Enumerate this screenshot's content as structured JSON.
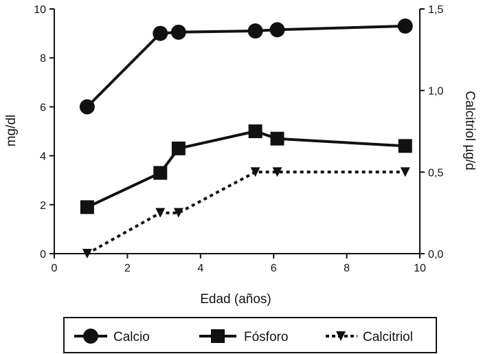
{
  "chart_data": {
    "type": "line",
    "x": [
      0.9,
      2.9,
      3.4,
      5.5,
      6.1,
      9.6
    ],
    "xlabel": "Edad (años)",
    "ylabel": "mg/dl",
    "y2label": "Calcitriol µg/d",
    "xlim": [
      0,
      10
    ],
    "ylim": [
      0,
      10
    ],
    "y2lim": [
      0,
      1.5
    ],
    "xticks": [
      "0",
      "2",
      "4",
      "6",
      "8",
      "10"
    ],
    "yticks": [
      "0",
      "2",
      "4",
      "6",
      "8",
      "10"
    ],
    "y2ticks": [
      "0,0",
      "0,5",
      "1,0",
      "1,5"
    ],
    "grid": false,
    "legend_position": "bottom",
    "series": [
      {
        "name": "Calcio",
        "axis": "left",
        "marker": "circle",
        "line": "solid",
        "x": [
          0.9,
          2.9,
          3.4,
          5.5,
          6.1,
          9.6
        ],
        "values": [
          6.0,
          9.0,
          9.05,
          9.1,
          9.15,
          9.3
        ]
      },
      {
        "name": "Fósforo",
        "axis": "left",
        "marker": "square",
        "line": "solid",
        "x": [
          0.9,
          2.9,
          3.4,
          5.5,
          6.1,
          9.6
        ],
        "values": [
          1.9,
          3.3,
          4.3,
          5.0,
          4.7,
          4.4
        ]
      },
      {
        "name": "Calcitriol",
        "axis": "right",
        "marker": "triangle-down",
        "line": "dotted",
        "x": [
          0.9,
          2.9,
          3.4,
          5.5,
          6.1,
          9.6
        ],
        "values": [
          0.0,
          0.25,
          0.25,
          0.5,
          0.5,
          0.5
        ]
      }
    ],
    "colors": {
      "ink": "#111111",
      "background": "#ffffff"
    }
  }
}
